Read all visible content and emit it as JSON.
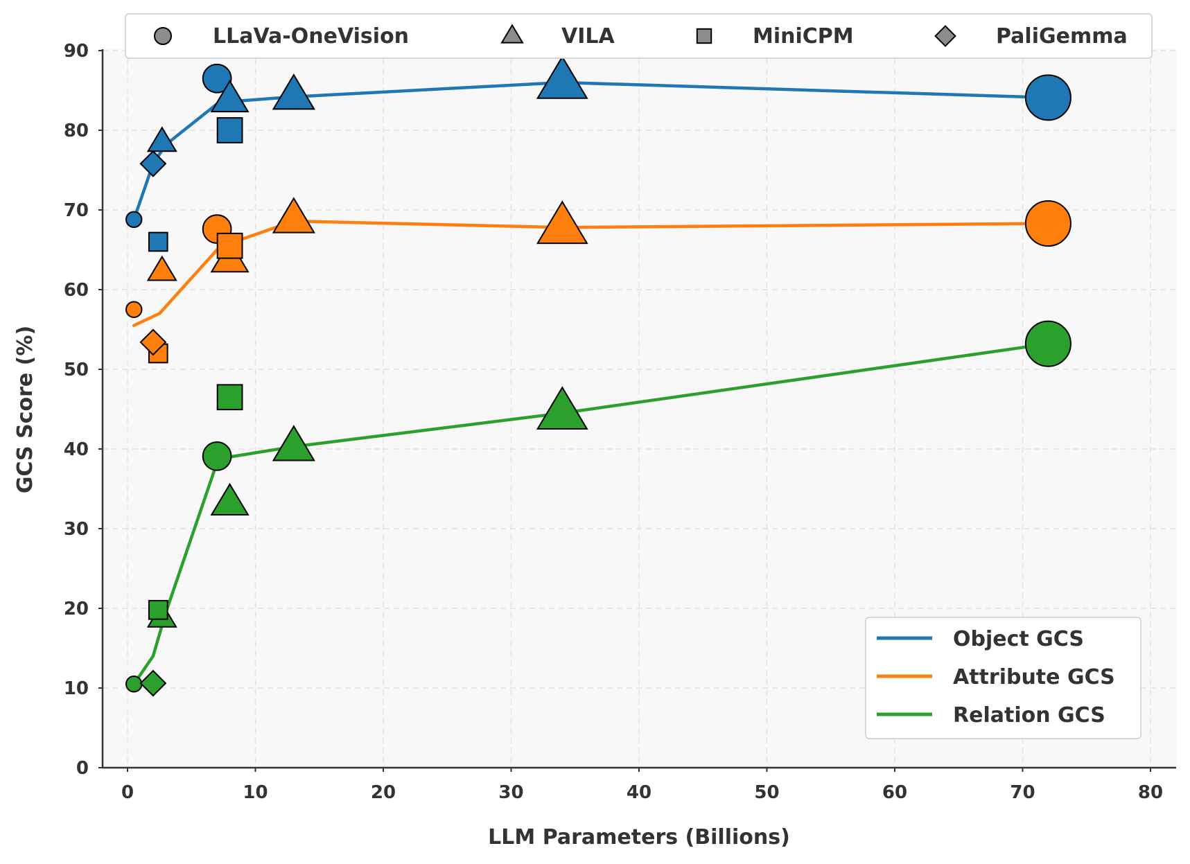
{
  "chart_data": {
    "type": "scatter",
    "xlabel": "LLM Parameters (Billions)",
    "ylabel": "GCS Score (%)",
    "xlim": [
      -2,
      82
    ],
    "ylim": [
      0,
      90
    ],
    "xticks": [
      "0",
      "10",
      "20",
      "30",
      "40",
      "50",
      "60",
      "70",
      "80"
    ],
    "yticks": [
      "0",
      "10",
      "20",
      "30",
      "40",
      "50",
      "60",
      "70",
      "80",
      "90"
    ],
    "grid": true,
    "colors": {
      "Object GCS": "#1f77b4",
      "Attribute GCS": "#ff7f0e",
      "Relation GCS": "#2ca02c"
    },
    "model_legend": {
      "placement": "top",
      "entries": [
        {
          "name": "LLaVa-OneVision",
          "marker": "circle"
        },
        {
          "name": "VILA",
          "marker": "triangle"
        },
        {
          "name": "MiniCPM",
          "marker": "square"
        },
        {
          "name": "PaliGemma",
          "marker": "diamond"
        }
      ]
    },
    "metric_legend": {
      "placement": "lower-right",
      "entries": [
        "Object GCS",
        "Attribute GCS",
        "Relation GCS"
      ]
    },
    "series": [
      {
        "name": "Object GCS",
        "trend": [
          [
            0.5,
            68.8
          ],
          [
            2,
            75.8
          ],
          [
            3,
            78.2
          ],
          [
            7,
            83.3
          ],
          [
            8,
            83.6
          ],
          [
            13,
            84.2
          ],
          [
            34,
            86.0
          ],
          [
            72,
            84.1
          ]
        ],
        "points": [
          {
            "model": "LLaVa-OneVision",
            "x": 0.5,
            "y": 68.8
          },
          {
            "model": "LLaVa-OneVision",
            "x": 7,
            "y": 86.5
          },
          {
            "model": "LLaVa-OneVision",
            "x": 72,
            "y": 84.1
          },
          {
            "model": "VILA",
            "x": 2.7,
            "y": 78.5
          },
          {
            "model": "VILA",
            "x": 8,
            "y": 83.8
          },
          {
            "model": "VILA",
            "x": 13,
            "y": 84.3
          },
          {
            "model": "VILA",
            "x": 34,
            "y": 86.0
          },
          {
            "model": "MiniCPM",
            "x": 2.4,
            "y": 66.0
          },
          {
            "model": "MiniCPM",
            "x": 8,
            "y": 80.0
          },
          {
            "model": "PaliGemma",
            "x": 2,
            "y": 75.8
          }
        ]
      },
      {
        "name": "Attribute GCS",
        "trend": [
          [
            0.5,
            55.5
          ],
          [
            2.5,
            57.0
          ],
          [
            7,
            65.0
          ],
          [
            8,
            65.8
          ],
          [
            13,
            68.6
          ],
          [
            34,
            67.8
          ],
          [
            72,
            68.3
          ]
        ],
        "points": [
          {
            "model": "LLaVa-OneVision",
            "x": 0.5,
            "y": 57.5
          },
          {
            "model": "LLaVa-OneVision",
            "x": 7,
            "y": 67.6
          },
          {
            "model": "LLaVa-OneVision",
            "x": 72,
            "y": 68.3
          },
          {
            "model": "VILA",
            "x": 2.7,
            "y": 62.3
          },
          {
            "model": "VILA",
            "x": 8,
            "y": 63.7
          },
          {
            "model": "VILA",
            "x": 13,
            "y": 68.8
          },
          {
            "model": "VILA",
            "x": 34,
            "y": 67.8
          },
          {
            "model": "MiniCPM",
            "x": 2.4,
            "y": 52.0
          },
          {
            "model": "MiniCPM",
            "x": 8,
            "y": 65.5
          },
          {
            "model": "PaliGemma",
            "x": 2,
            "y": 53.4
          }
        ]
      },
      {
        "name": "Relation GCS",
        "trend": [
          [
            0.5,
            10.5
          ],
          [
            2,
            14.0
          ],
          [
            3,
            19.5
          ],
          [
            7,
            38.3
          ],
          [
            8,
            39.0
          ],
          [
            13,
            40.3
          ],
          [
            34,
            44.5
          ],
          [
            72,
            53.2
          ]
        ],
        "points": [
          {
            "model": "LLaVa-OneVision",
            "x": 0.5,
            "y": 10.5
          },
          {
            "model": "LLaVa-OneVision",
            "x": 7,
            "y": 39.1
          },
          {
            "model": "LLaVa-OneVision",
            "x": 72,
            "y": 53.2
          },
          {
            "model": "VILA",
            "x": 2.7,
            "y": 18.8
          },
          {
            "model": "VILA",
            "x": 8,
            "y": 33.2
          },
          {
            "model": "VILA",
            "x": 13,
            "y": 40.2
          },
          {
            "model": "VILA",
            "x": 34,
            "y": 44.5
          },
          {
            "model": "MiniCPM",
            "x": 2.4,
            "y": 19.8
          },
          {
            "model": "MiniCPM",
            "x": 8,
            "y": 46.5
          },
          {
            "model": "PaliGemma",
            "x": 2,
            "y": 10.6
          }
        ]
      }
    ]
  }
}
